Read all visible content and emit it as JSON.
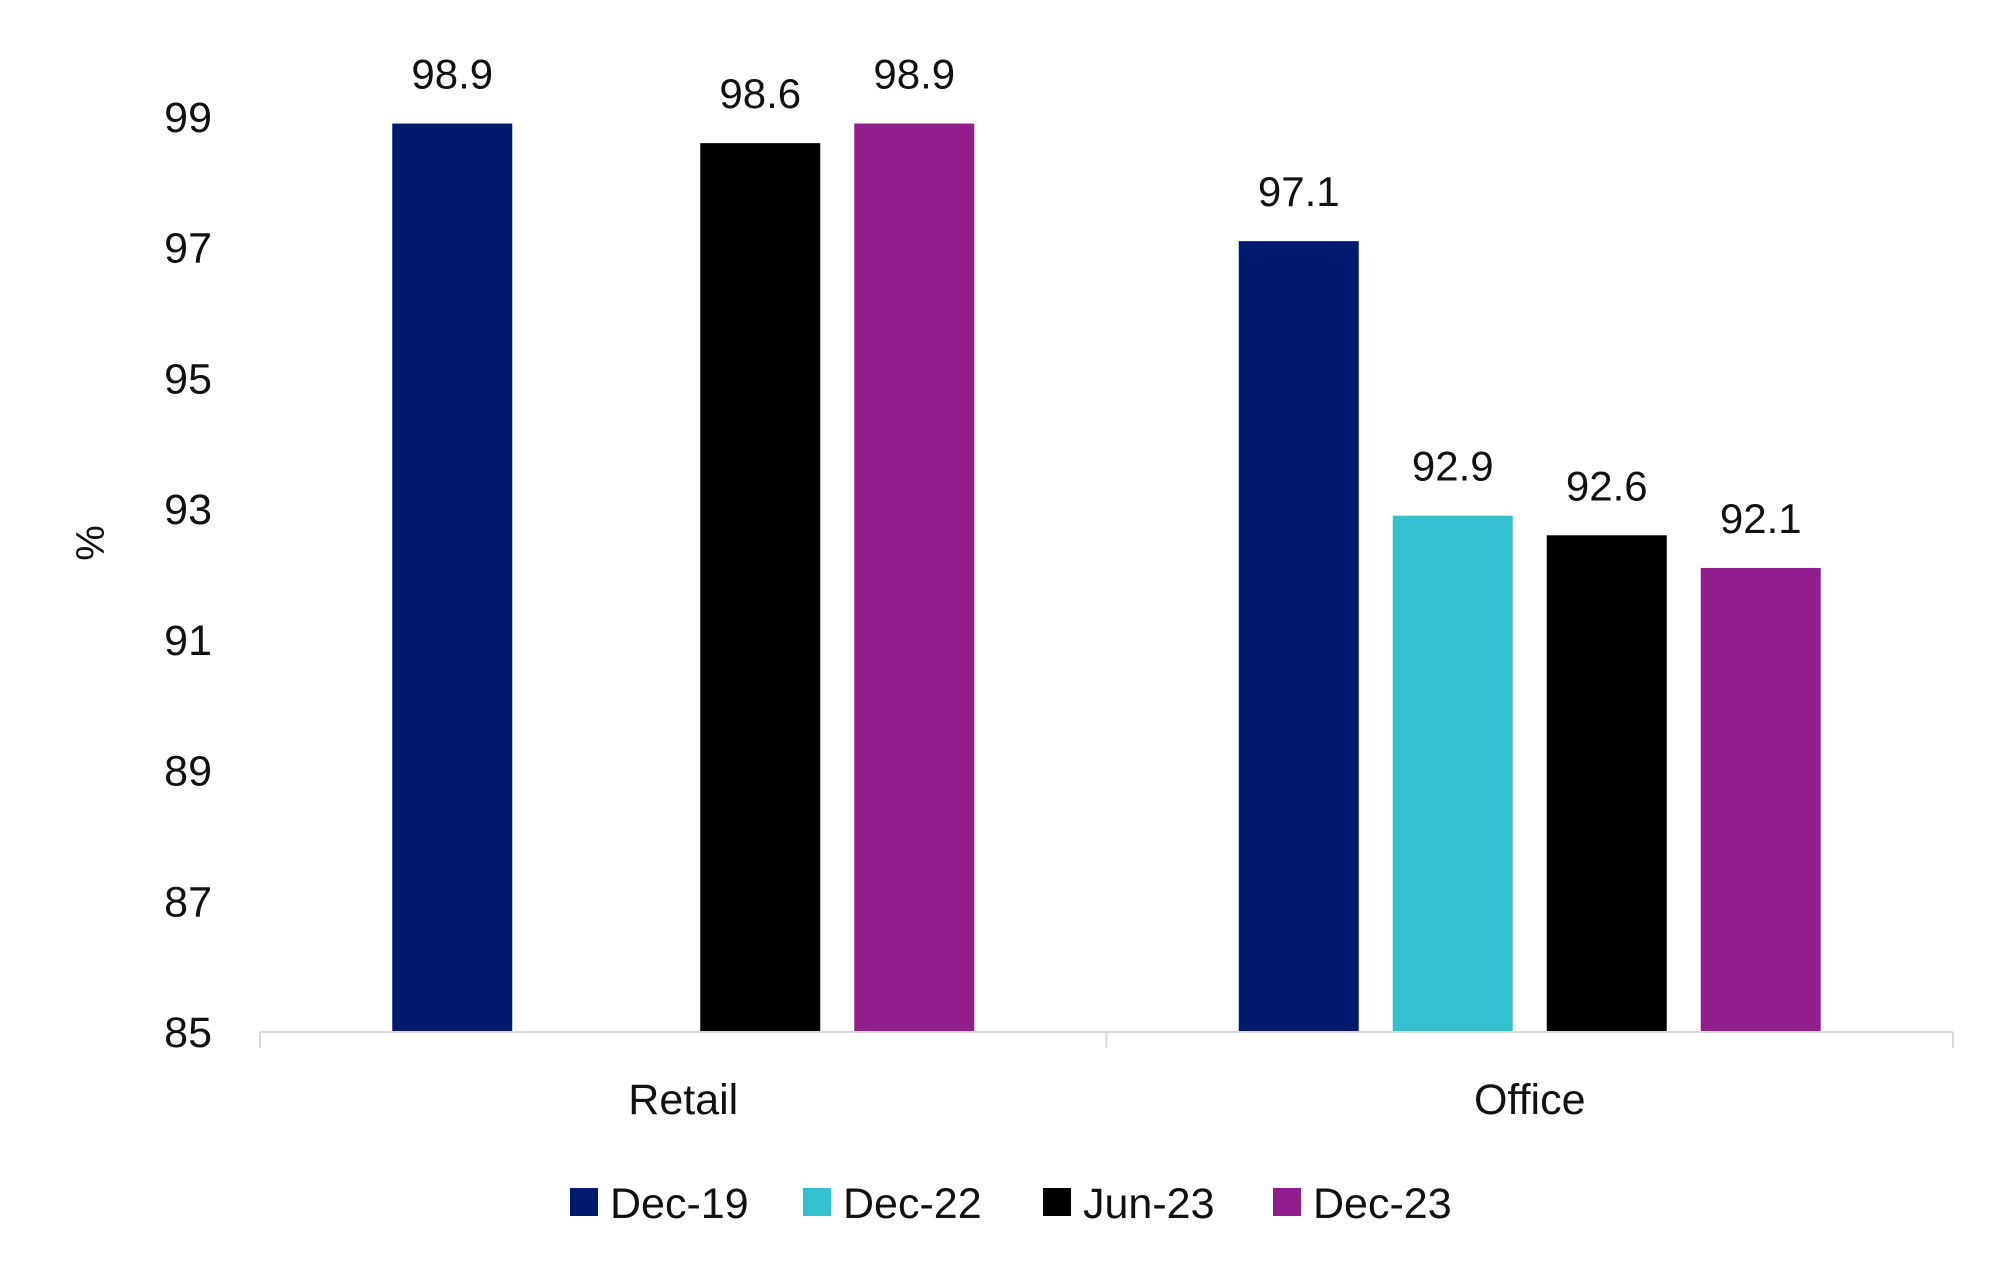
{
  "chart_data": {
    "type": "bar",
    "title": "",
    "xlabel": "",
    "ylabel": "%",
    "ylim": [
      85,
      99
    ],
    "yticks": [
      85,
      87,
      89,
      91,
      93,
      95,
      97,
      99
    ],
    "grid": false,
    "legend_position": "bottom",
    "categories": [
      "Retail",
      "Office"
    ],
    "series": [
      {
        "name": "Dec-19",
        "color": "#001a70",
        "values": [
          98.9,
          97.1
        ]
      },
      {
        "name": "Dec-22",
        "color": "#33c0cf",
        "values": [
          null,
          92.9
        ]
      },
      {
        "name": "Jun-23",
        "color": "#000000",
        "values": [
          98.6,
          92.6
        ]
      },
      {
        "name": "Dec-23",
        "color": "#921e8e",
        "values": [
          98.9,
          92.1
        ]
      }
    ]
  }
}
